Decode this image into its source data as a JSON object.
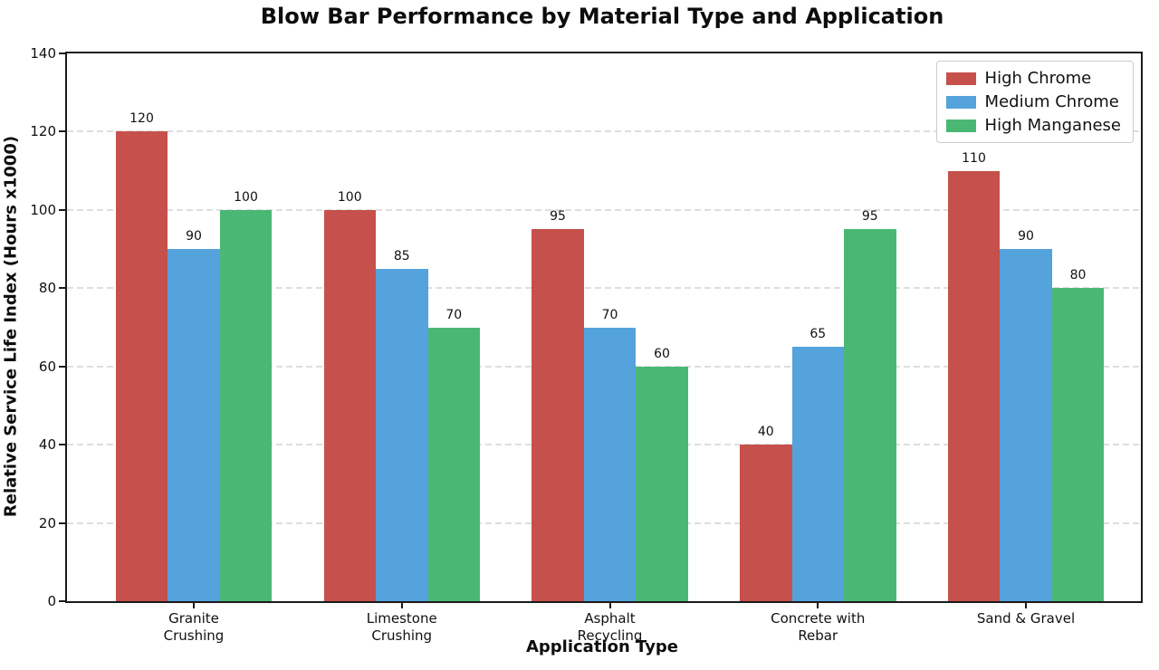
{
  "title": "Blow Bar Performance by Material Type and Application",
  "chart_data": {
    "type": "bar",
    "categories": [
      "Granite\nCrushing",
      "Limestone\nCrushing",
      "Asphalt\nRecycling",
      "Concrete with\nRebar",
      "Sand & Gravel"
    ],
    "series": [
      {
        "name": "High Chrome",
        "color": "#c6504b",
        "values": [
          120,
          100,
          95,
          40,
          110
        ]
      },
      {
        "name": "Medium Chrome",
        "color": "#54a3dc",
        "values": [
          90,
          85,
          70,
          65,
          90
        ]
      },
      {
        "name": "High Manganese",
        "color": "#4ab874",
        "values": [
          100,
          70,
          60,
          95,
          80
        ]
      }
    ],
    "xlabel": "Application Type",
    "ylabel": "Relative Service Life Index (Hours x1000)",
    "ylim": [
      0,
      140
    ],
    "yticks": [
      0,
      20,
      40,
      60,
      80,
      100,
      120,
      140
    ],
    "grid": "horizontal-dashed",
    "grid_color": "#dedede",
    "legend_position": "upper right",
    "bar_value_labels": true,
    "spine_color": "#1a1a1a"
  }
}
